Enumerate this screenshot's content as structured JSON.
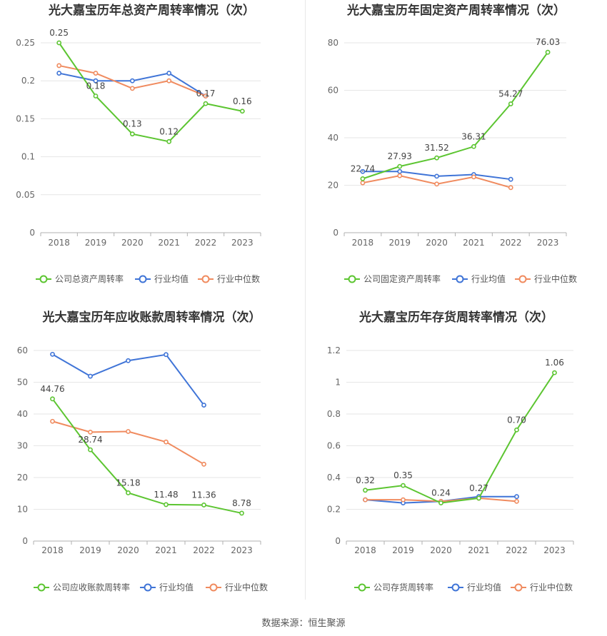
{
  "source_text": "数据来源：恒生聚源",
  "chart_data": [
    {
      "type": "line",
      "title": "光大嘉宝历年总资产周转率情况（次）",
      "categories": [
        "2018",
        "2019",
        "2020",
        "2021",
        "2022",
        "2023"
      ],
      "ylim": [
        0,
        0.25
      ],
      "yticks": [
        "0",
        "0.05",
        "0.1",
        "0.15",
        "0.2",
        "0.25"
      ],
      "ytick_values": [
        0,
        0.05,
        0.1,
        0.15,
        0.2,
        0.25
      ],
      "grid": true,
      "legend_position": "bottom",
      "series": [
        {
          "name": "公司总资产周转率",
          "color": "#5cc531",
          "values": [
            0.25,
            0.18,
            0.13,
            0.12,
            0.17,
            0.16
          ],
          "labels": [
            "0.25",
            "0.18",
            "0.13",
            "0.12",
            "0.17",
            "0.16"
          ]
        },
        {
          "name": "行业均值",
          "color": "#3f74d7",
          "values": [
            0.21,
            0.2,
            0.2,
            0.21,
            0.18,
            null
          ]
        },
        {
          "name": "行业中位数",
          "color": "#f08b5f",
          "values": [
            0.22,
            0.21,
            0.19,
            0.2,
            0.18,
            null
          ]
        }
      ]
    },
    {
      "type": "line",
      "title": "光大嘉宝历年固定资产周转率情况（次）",
      "categories": [
        "2018",
        "2019",
        "2020",
        "2021",
        "2022",
        "2023"
      ],
      "ylim": [
        0,
        80
      ],
      "yticks": [
        "0",
        "20",
        "40",
        "60",
        "80"
      ],
      "ytick_values": [
        0,
        20,
        40,
        60,
        80
      ],
      "grid": true,
      "legend_position": "bottom",
      "series": [
        {
          "name": "公司固定资产周转率",
          "color": "#5cc531",
          "values": [
            22.74,
            27.93,
            31.52,
            36.31,
            54.27,
            76.03
          ],
          "labels": [
            "22.74",
            "27.93",
            "31.52",
            "36.31",
            "54.27",
            "76.03"
          ]
        },
        {
          "name": "行业均值",
          "color": "#3f74d7",
          "values": [
            25.8,
            25.8,
            23.8,
            24.5,
            22.5,
            null
          ]
        },
        {
          "name": "行业中位数",
          "color": "#f08b5f",
          "values": [
            21,
            24,
            20.5,
            23.5,
            19,
            null
          ]
        }
      ]
    },
    {
      "type": "line",
      "title": "光大嘉宝历年应收账款周转率情况（次）",
      "categories": [
        "2018",
        "2019",
        "2020",
        "2021",
        "2022",
        "2023"
      ],
      "ylim": [
        0,
        60
      ],
      "yticks": [
        "0",
        "10",
        "20",
        "30",
        "40",
        "50",
        "60"
      ],
      "ytick_values": [
        0,
        10,
        20,
        30,
        40,
        50,
        60
      ],
      "grid": true,
      "legend_position": "bottom",
      "series": [
        {
          "name": "公司应收账款周转率",
          "color": "#5cc531",
          "values": [
            44.76,
            28.74,
            15.18,
            11.48,
            11.36,
            8.78
          ],
          "labels": [
            "44.76",
            "28.74",
            "15.18",
            "11.48",
            "11.36",
            "8.78"
          ]
        },
        {
          "name": "行业均值",
          "color": "#3f74d7",
          "values": [
            58.8,
            51.9,
            56.8,
            58.7,
            42.8,
            null
          ]
        },
        {
          "name": "行业中位数",
          "color": "#f08b5f",
          "values": [
            37.7,
            34.3,
            34.5,
            31.2,
            24.2,
            null
          ]
        }
      ]
    },
    {
      "type": "line",
      "title": "光大嘉宝历年存货周转率情况（次）",
      "categories": [
        "2018",
        "2019",
        "2020",
        "2021",
        "2022",
        "2023"
      ],
      "ylim": [
        0,
        1.2
      ],
      "yticks": [
        "0",
        "0.2",
        "0.4",
        "0.6",
        "0.8",
        "1",
        "1.2"
      ],
      "ytick_values": [
        0,
        0.2,
        0.4,
        0.6,
        0.8,
        1,
        1.2
      ],
      "grid": true,
      "legend_position": "bottom",
      "series": [
        {
          "name": "公司存货周转率",
          "color": "#5cc531",
          "values": [
            0.32,
            0.35,
            0.24,
            0.27,
            0.7,
            1.06
          ],
          "labels": [
            "0.32",
            "0.35",
            "0.24",
            "0.27",
            "0.70",
            "1.06"
          ]
        },
        {
          "name": "行业均值",
          "color": "#3f74d7",
          "values": [
            0.26,
            0.24,
            0.25,
            0.28,
            0.28,
            null
          ]
        },
        {
          "name": "行业中位数",
          "color": "#f08b5f",
          "values": [
            0.26,
            0.26,
            0.25,
            0.27,
            0.25,
            null
          ]
        }
      ]
    }
  ]
}
